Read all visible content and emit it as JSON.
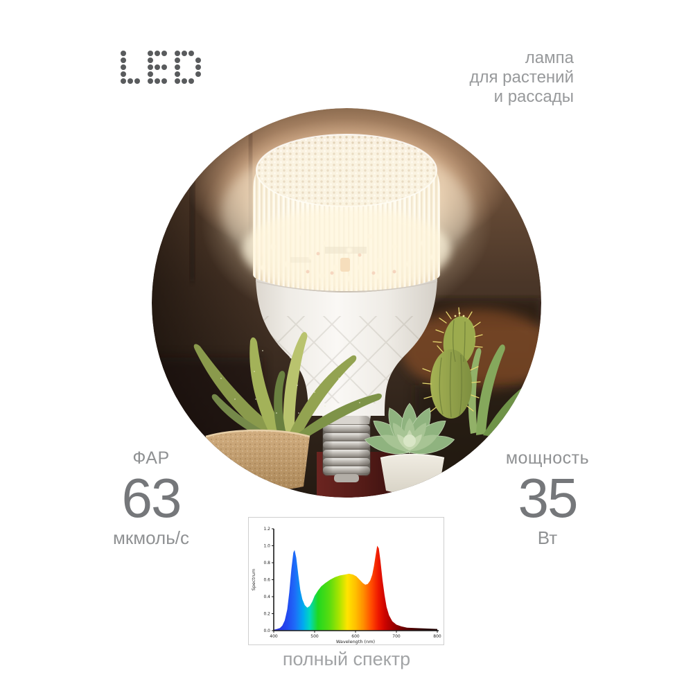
{
  "brand": {
    "logo_text": "LED"
  },
  "header": {
    "tagline_lines": [
      "лампа",
      "для растений",
      "и рассады"
    ]
  },
  "specs": {
    "par": {
      "label": "ФАР",
      "value": "63",
      "unit": "мкмоль/с"
    },
    "power": {
      "label": "мощность",
      "value": "35",
      "unit": "Вт"
    }
  },
  "chart": {
    "caption": "полный спектр"
  },
  "chart_data": {
    "type": "area",
    "title": "",
    "xlabel": "Wavelength (nm)",
    "ylabel": "Spectrum",
    "xlim": [
      400,
      800
    ],
    "ylim": [
      0,
      1.2
    ],
    "x_ticks": [
      400,
      500,
      600,
      700,
      800
    ],
    "y_ticks": [
      0.0,
      0.2,
      0.4,
      0.6,
      0.8,
      1.0,
      1.2
    ],
    "grid": false,
    "legend": false,
    "points": [
      [
        400,
        0.01
      ],
      [
        408,
        0.02
      ],
      [
        415,
        0.03
      ],
      [
        421,
        0.06
      ],
      [
        427,
        0.12
      ],
      [
        433,
        0.25
      ],
      [
        438,
        0.45
      ],
      [
        443,
        0.72
      ],
      [
        448,
        0.92
      ],
      [
        451,
        0.95
      ],
      [
        455,
        0.86
      ],
      [
        460,
        0.66
      ],
      [
        465,
        0.48
      ],
      [
        470,
        0.37
      ],
      [
        476,
        0.3
      ],
      [
        482,
        0.27
      ],
      [
        488,
        0.29
      ],
      [
        494,
        0.34
      ],
      [
        500,
        0.41
      ],
      [
        508,
        0.47
      ],
      [
        516,
        0.52
      ],
      [
        526,
        0.56
      ],
      [
        538,
        0.6
      ],
      [
        550,
        0.63
      ],
      [
        562,
        0.65
      ],
      [
        574,
        0.66
      ],
      [
        584,
        0.67
      ],
      [
        594,
        0.66
      ],
      [
        602,
        0.64
      ],
      [
        610,
        0.6
      ],
      [
        618,
        0.56
      ],
      [
        624,
        0.54
      ],
      [
        630,
        0.55
      ],
      [
        636,
        0.59
      ],
      [
        641,
        0.66
      ],
      [
        645,
        0.76
      ],
      [
        649,
        0.88
      ],
      [
        653,
        1.0
      ],
      [
        657,
        0.97
      ],
      [
        661,
        0.82
      ],
      [
        666,
        0.6
      ],
      [
        671,
        0.42
      ],
      [
        676,
        0.28
      ],
      [
        682,
        0.18
      ],
      [
        690,
        0.11
      ],
      [
        700,
        0.07
      ],
      [
        712,
        0.05
      ],
      [
        726,
        0.035
      ],
      [
        745,
        0.03
      ],
      [
        770,
        0.025
      ],
      [
        800,
        0.02
      ]
    ],
    "gradient_stops": [
      {
        "offset": 0.0,
        "color": "#2a2ad8"
      },
      {
        "offset": 0.08,
        "color": "#2248f0"
      },
      {
        "offset": 0.13,
        "color": "#1e6cf8"
      },
      {
        "offset": 0.18,
        "color": "#00aaf0"
      },
      {
        "offset": 0.22,
        "color": "#00d8c0"
      },
      {
        "offset": 0.27,
        "color": "#20d820"
      },
      {
        "offset": 0.34,
        "color": "#58dc10"
      },
      {
        "offset": 0.4,
        "color": "#aae400"
      },
      {
        "offset": 0.45,
        "color": "#ffe400"
      },
      {
        "offset": 0.5,
        "color": "#ffc000"
      },
      {
        "offset": 0.55,
        "color": "#ff8c00"
      },
      {
        "offset": 0.6,
        "color": "#ff4800"
      },
      {
        "offset": 0.64,
        "color": "#ee1800"
      },
      {
        "offset": 0.68,
        "color": "#cc0400"
      },
      {
        "offset": 0.73,
        "color": "#a00000"
      },
      {
        "offset": 0.8,
        "color": "#660000"
      },
      {
        "offset": 0.9,
        "color": "#330000"
      },
      {
        "offset": 1.0,
        "color": "#1a0000"
      }
    ]
  },
  "colors": {
    "logo_dots": "#595b5d",
    "tagline_text": "#97999b",
    "spec_label": "#8f9193",
    "spec_value": "#75777a",
    "caption_text": "#a2a4a6",
    "chart_border": "#cfcfcf",
    "axis": "#1a1a1a"
  }
}
